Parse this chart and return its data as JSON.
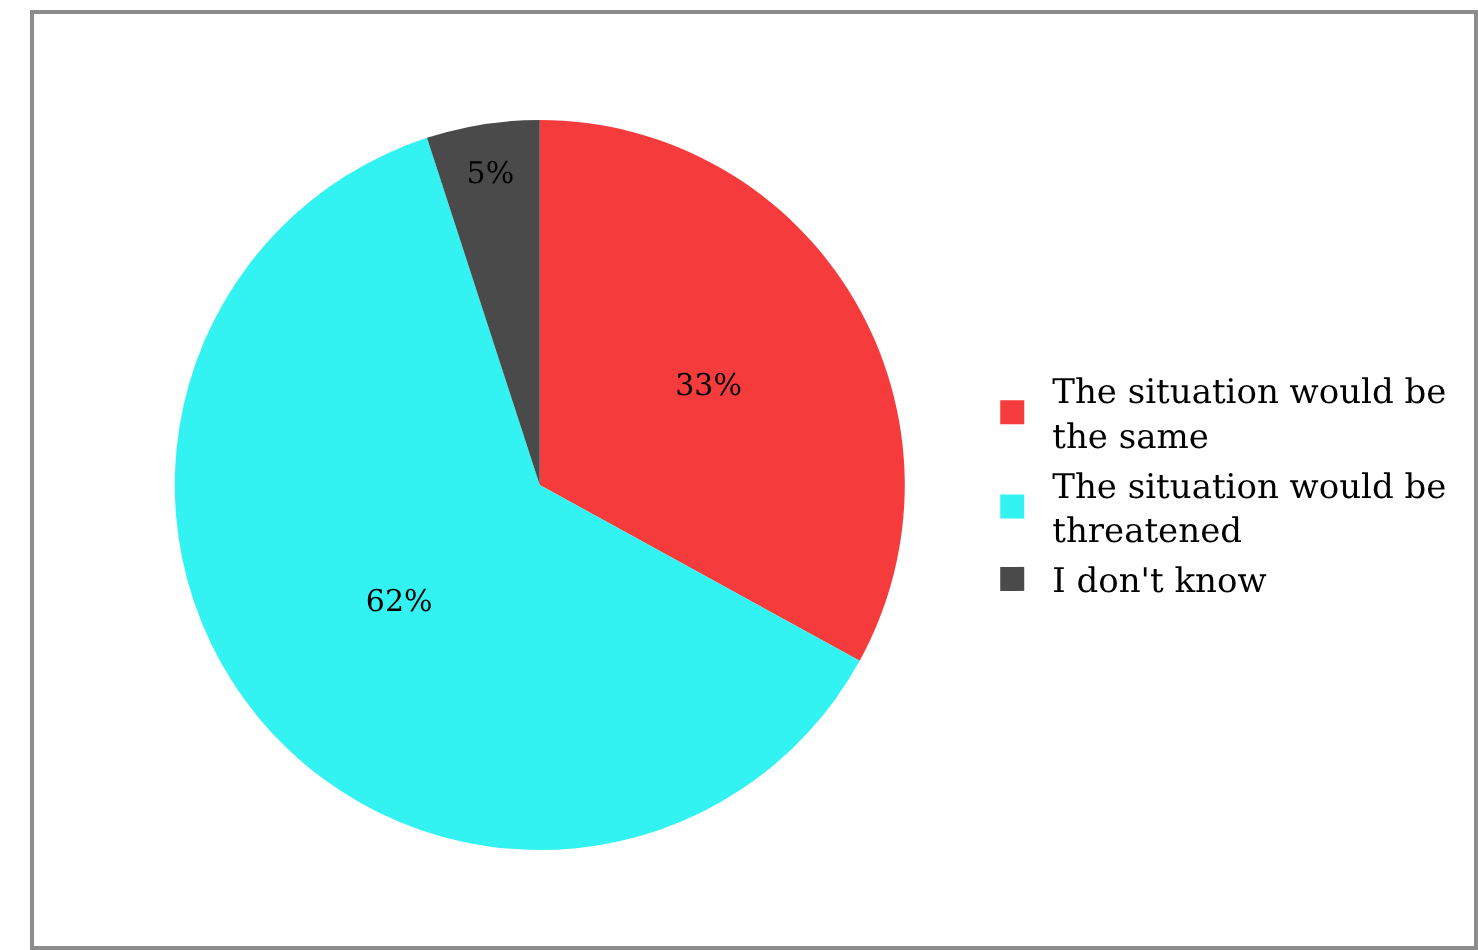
{
  "chart_data": {
    "type": "pie",
    "categories": [
      "The situation would be the same",
      "The situation would be threatened",
      "I don't know"
    ],
    "values": [
      33,
      62,
      5
    ],
    "colors": [
      "#f53b3b",
      "#33f2f2",
      "#4a4a4a"
    ],
    "value_labels": [
      "33%",
      "62%",
      "5%"
    ],
    "legend": "right"
  }
}
